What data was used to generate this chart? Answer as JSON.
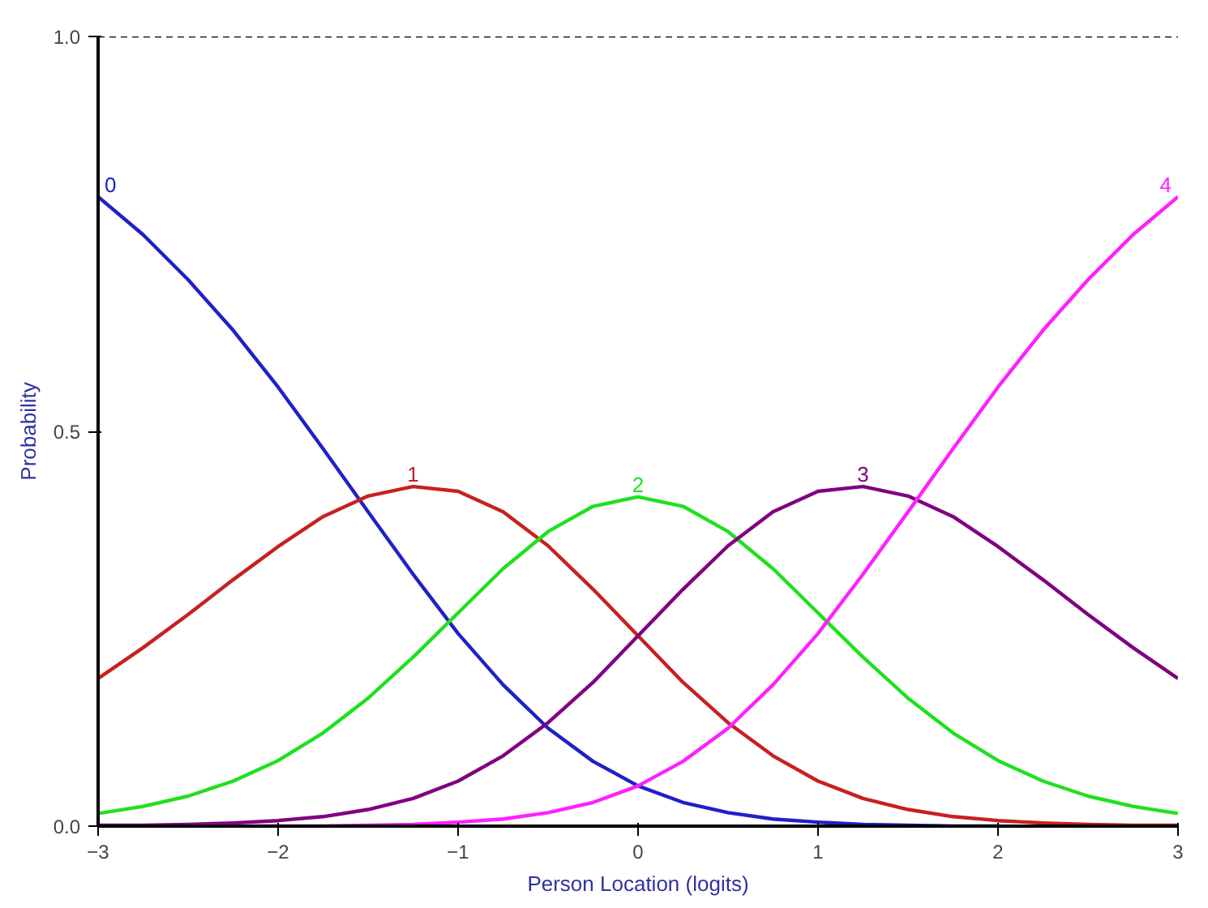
{
  "chart_data": {
    "type": "line",
    "xlabel": "Person Location (logits)",
    "ylabel": "Probability",
    "x": [
      -3,
      -2.75,
      -2.5,
      -2.25,
      -2,
      -1.75,
      -1.5,
      -1.25,
      -1,
      -0.75,
      -0.5,
      -0.25,
      0,
      0.25,
      0.5,
      0.75,
      1,
      1.25,
      1.5,
      1.75,
      2,
      2.25,
      2.5,
      2.75,
      3
    ],
    "series": [
      {
        "name": "0",
        "color": "#2020c8",
        "values": [
          0.797,
          0.749,
          0.692,
          0.628,
          0.556,
          0.478,
          0.398,
          0.319,
          0.244,
          0.179,
          0.124,
          0.082,
          0.051,
          0.03,
          0.017,
          0.009,
          0.005,
          0.002,
          0.001,
          0,
          0,
          null,
          null,
          null,
          null
        ]
      },
      {
        "name": "1",
        "color": "#c82020",
        "values": [
          0.187,
          0.226,
          0.268,
          0.312,
          0.354,
          0.392,
          0.418,
          0.43,
          0.424,
          0.398,
          0.355,
          0.3,
          0.241,
          0.182,
          0.131,
          0.089,
          0.057,
          0.035,
          0.021,
          0.012,
          0.007,
          0.004,
          0.002,
          0.001,
          0.001
        ]
      },
      {
        "name": "2",
        "color": "#20e020",
        "values": [
          0.016,
          0.025,
          0.038,
          0.057,
          0.083,
          0.118,
          0.162,
          0.214,
          0.27,
          0.326,
          0.373,
          0.405,
          0.417,
          0.405,
          0.373,
          0.326,
          0.27,
          0.214,
          0.162,
          0.118,
          0.083,
          0.057,
          0.038,
          0.025,
          0.016
        ]
      },
      {
        "name": "3",
        "color": "#800080",
        "values": [
          0.001,
          0.001,
          0.002,
          0.004,
          0.007,
          0.012,
          0.021,
          0.035,
          0.057,
          0.089,
          0.131,
          0.182,
          0.241,
          0.3,
          0.355,
          0.398,
          0.424,
          0.43,
          0.418,
          0.392,
          0.354,
          0.312,
          0.268,
          0.226,
          0.187
        ]
      },
      {
        "name": "4",
        "color": "#ff20ff",
        "values": [
          null,
          null,
          0,
          0,
          0,
          0,
          0.001,
          0.002,
          0.005,
          0.009,
          0.017,
          0.03,
          0.051,
          0.082,
          0.124,
          0.179,
          0.244,
          0.319,
          0.398,
          0.478,
          0.556,
          0.628,
          0.692,
          0.749,
          0.797
        ]
      }
    ],
    "xlim": [
      -3,
      3
    ],
    "ylim": [
      0,
      1
    ],
    "xticks": [
      -3,
      -2,
      -1,
      0,
      1,
      2,
      3
    ],
    "yticks": [
      {
        "value": 0,
        "label": "0.0"
      },
      {
        "value": 0.5,
        "label": "0.5"
      },
      {
        "value": 1,
        "label": "1.0"
      }
    ],
    "ref_lines": [
      {
        "axis": "y",
        "value": 1,
        "color": "#000000",
        "line_style": "dashed"
      }
    ],
    "grid": false,
    "legend": false,
    "marker": "none",
    "line_style": "solid"
  }
}
